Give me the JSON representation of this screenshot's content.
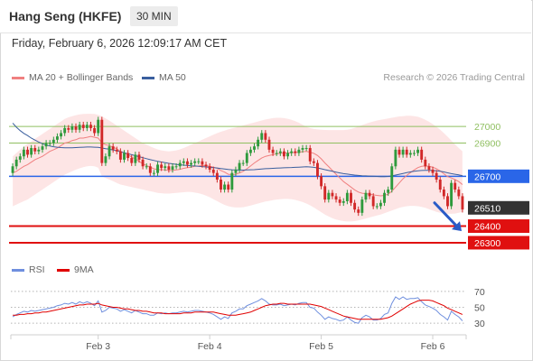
{
  "header": {
    "title": "Hang Seng (HKFE)",
    "timeframe": "30 MIN"
  },
  "timestamp": "Friday, February 6, 2026 12:09:17 AM CET",
  "legend": {
    "ma20": {
      "label": "MA 20 + Bollinger Bands",
      "color": "#f08080"
    },
    "ma50": {
      "label": "MA 50",
      "color": "#3a5f9e"
    },
    "rsi": {
      "label": "RSI",
      "color": "#6f8fde"
    },
    "ma9": {
      "label": "9MA",
      "color": "#e00000"
    }
  },
  "credit": "Research © 2026 Trading Central",
  "chart_data": [
    {
      "type": "candlestick",
      "title": "Hang Seng (HKFE)",
      "timeframe": "30 MIN",
      "x_ticks": [
        "Feb 3",
        "Feb 4",
        "Feb 5",
        "Feb 6"
      ],
      "ylim": [
        26240,
        27120
      ],
      "levels": [
        {
          "label": "27000",
          "value": 27000,
          "kind": "resistance",
          "color": "#8fbf60",
          "text_color": "#8fbf60"
        },
        {
          "label": "26900",
          "value": 26900,
          "kind": "resistance",
          "color": "#8fbf60",
          "text_color": "#8fbf60"
        },
        {
          "label": "26700",
          "value": 26700,
          "kind": "pivot",
          "color": "#2a66e8",
          "text_color": "#ffffff",
          "box": true
        },
        {
          "label": "26510",
          "value": 26510,
          "kind": "last",
          "color": "#333333",
          "text_color": "#ffffff",
          "box": true,
          "no_line": true
        },
        {
          "label": "26400",
          "value": 26400,
          "kind": "support",
          "color": "#e01010",
          "text_color": "#ffffff",
          "box": true
        },
        {
          "label": "26300",
          "value": 26300,
          "kind": "support",
          "color": "#e01010",
          "text_color": "#ffffff",
          "box": true
        }
      ],
      "bias_arrow": {
        "from": 26540,
        "to": 26370,
        "color": "#2a5bc7"
      },
      "candle_colors": {
        "up": "#2e9a3c",
        "down": "#d12828"
      },
      "series": {
        "close": [
          26760,
          26800,
          26820,
          26860,
          26830,
          26870,
          26850,
          26860,
          26880,
          26900,
          26900,
          26920,
          26940,
          26960,
          26990,
          26980,
          27000,
          26980,
          27010,
          26990,
          27010,
          26990,
          26960,
          27040,
          26780,
          26820,
          26880,
          26860,
          26850,
          26800,
          26840,
          26810,
          26780,
          26830,
          26800,
          26760,
          26760,
          26720,
          26720,
          26770,
          26750,
          26760,
          26740,
          26760,
          26760,
          26780,
          26790,
          26770,
          26780,
          26790,
          26790,
          26770,
          26760,
          26740,
          26720,
          26680,
          26620,
          26650,
          26620,
          26720,
          26740,
          26780,
          26780,
          26840,
          26860,
          26880,
          26920,
          26960,
          26920,
          26860,
          26840,
          26840,
          26850,
          26820,
          26840,
          26850,
          26840,
          26860,
          26870,
          26870,
          26790,
          26780,
          26700,
          26640,
          26560,
          26600,
          26580,
          26560,
          26540,
          26550,
          26600,
          26540,
          26500,
          26480,
          26560,
          26600,
          26580,
          26520,
          26520,
          26540,
          26600,
          26620,
          26760,
          26860,
          26830,
          26860,
          26830,
          26840,
          26840,
          26860,
          26800,
          26760,
          26740,
          26720,
          26680,
          26620,
          26580,
          26520,
          26660,
          26620,
          26580,
          26500
        ],
        "open": [
          26720,
          26760,
          26800,
          26820,
          26860,
          26830,
          26870,
          26850,
          26860,
          26880,
          26900,
          26900,
          26920,
          26940,
          26960,
          26990,
          26980,
          27000,
          26980,
          27010,
          26990,
          27010,
          26990,
          26960,
          27040,
          26780,
          26820,
          26880,
          26860,
          26850,
          26800,
          26840,
          26810,
          26780,
          26830,
          26800,
          26760,
          26760,
          26720,
          26720,
          26770,
          26750,
          26760,
          26740,
          26760,
          26760,
          26780,
          26790,
          26770,
          26780,
          26790,
          26790,
          26770,
          26760,
          26740,
          26720,
          26680,
          26620,
          26650,
          26620,
          26720,
          26740,
          26780,
          26780,
          26840,
          26860,
          26880,
          26920,
          26960,
          26920,
          26860,
          26840,
          26840,
          26850,
          26820,
          26840,
          26850,
          26840,
          26860,
          26870,
          26870,
          26790,
          26780,
          26700,
          26640,
          26560,
          26600,
          26580,
          26560,
          26540,
          26550,
          26600,
          26540,
          26500,
          26480,
          26560,
          26600,
          26580,
          26520,
          26520,
          26540,
          26600,
          26620,
          26760,
          26860,
          26830,
          26860,
          26830,
          26840,
          26840,
          26860,
          26800,
          26760,
          26740,
          26720,
          26680,
          26620,
          26580,
          26520,
          26660,
          26620,
          26580
        ]
      },
      "ma20": [
        26720,
        26730,
        26745,
        26760,
        26770,
        26785,
        26800,
        26810,
        26820,
        26835,
        26850,
        26860,
        26870,
        26885,
        26900,
        26905,
        26915,
        26920,
        26930,
        26930,
        26935,
        26940,
        26935,
        26930,
        26900,
        26890,
        26885,
        26875,
        26865,
        26850,
        26840,
        26830,
        26815,
        26805,
        26790,
        26775,
        26765,
        26755,
        26745,
        26740,
        26740,
        26738,
        26735,
        26735,
        26738,
        26742,
        26748,
        26752,
        26755,
        26760,
        26762,
        26765,
        26763,
        26760,
        26755,
        26748,
        26735,
        26725,
        26712,
        26710,
        26712,
        26720,
        26730,
        26745,
        26762,
        26780,
        26795,
        26810,
        26820,
        26825,
        26830,
        26835,
        26838,
        26840,
        26840,
        26842,
        26843,
        26845,
        26848,
        26850,
        26845,
        26838,
        26825,
        26805,
        26780,
        26758,
        26735,
        26712,
        26690,
        26668,
        26652,
        26635,
        26618,
        26605,
        26598,
        26595,
        26592,
        26588,
        26585,
        26582,
        26585,
        26592,
        26610,
        26635,
        26660,
        26685,
        26705,
        26722,
        26738,
        26752,
        26760,
        26762,
        26760,
        26755,
        26745,
        26732,
        26715,
        26698,
        26690,
        26680,
        26668,
        26650
      ],
      "ma50": [
        27020,
        26995,
        26975,
        26958,
        26945,
        26930,
        26918,
        26906,
        26896,
        26888,
        26882,
        26878,
        26875,
        26873,
        26872,
        26872,
        26872,
        26873,
        26874,
        26875,
        26876,
        26876,
        26875,
        26874,
        26870,
        26866,
        26863,
        26858,
        26853,
        26848,
        26842,
        26836,
        26830,
        26824,
        26818,
        26812,
        26806,
        26800,
        26795,
        26790,
        26786,
        26782,
        26778,
        26775,
        26772,
        26769,
        26767,
        26765,
        26763,
        26762,
        26760,
        26758,
        26756,
        26754,
        26752,
        26750,
        26747,
        26744,
        26741,
        26739,
        26738,
        26737,
        26737,
        26738,
        26739,
        26740,
        26742,
        26744,
        26746,
        26747,
        26748,
        26749,
        26750,
        26751,
        26752,
        26753,
        26754,
        26755,
        26756,
        26757,
        26756,
        26754,
        26750,
        26745,
        26740,
        26735,
        26730,
        26725,
        26720,
        26716,
        26713,
        26710,
        26707,
        26705,
        26703,
        26702,
        26701,
        26700,
        26699,
        26698,
        26698,
        26699,
        26702,
        26707,
        26712,
        26717,
        26722,
        26726,
        26730,
        26733,
        26735,
        26736,
        26736,
        26735,
        26733,
        26730,
        26726,
        26721,
        26716,
        26712,
        26708,
        26704
      ],
      "bb_upper": [
        26820,
        26840,
        26860,
        26880,
        26895,
        26910,
        26925,
        26940,
        26955,
        26970,
        26985,
        27000,
        27015,
        27030,
        27045,
        27055,
        27062,
        27068,
        27072,
        27075,
        27076,
        27076,
        27075,
        27070,
        27060,
        27048,
        27035,
        27020,
        27005,
        26990,
        26975,
        26960,
        26945,
        26930,
        26915,
        26900,
        26890,
        26880,
        26870,
        26862,
        26856,
        26852,
        26850,
        26852,
        26856,
        26862,
        26870,
        26880,
        26890,
        26900,
        26910,
        26920,
        26930,
        26940,
        26950,
        26960,
        26968,
        26975,
        26982,
        26988,
        26994,
        27000,
        27006,
        27012,
        27018,
        27024,
        27030,
        27036,
        27042,
        27046,
        27050,
        27052,
        27052,
        27050,
        27046,
        27040,
        27032,
        27022,
        27010,
        26998,
        26990,
        26985,
        26982,
        26980,
        26979,
        26978,
        26978,
        26978,
        26978,
        26978,
        26980,
        26985,
        26992,
        27000,
        27008,
        27016,
        27024,
        27030,
        27036,
        27040,
        27044,
        27048,
        27052,
        27056,
        27060,
        27062,
        27064,
        27064,
        27062,
        27058,
        27050,
        27040,
        27028,
        27014,
        26998,
        26980,
        26960,
        26938,
        26915,
        26892,
        26870,
        26850
      ],
      "bb_lower": [
        26520,
        26530,
        26540,
        26550,
        26560,
        26575,
        26590,
        26605,
        26620,
        26635,
        26650,
        26665,
        26680,
        26695,
        26710,
        26720,
        26730,
        26740,
        26748,
        26755,
        26760,
        26762,
        26760,
        26752,
        26700,
        26690,
        26680,
        26670,
        26660,
        26650,
        26645,
        26640,
        26635,
        26630,
        26625,
        26620,
        26615,
        26610,
        26605,
        26600,
        26598,
        26596,
        26596,
        26598,
        26600,
        26602,
        26604,
        26606,
        26605,
        26602,
        26598,
        26592,
        26584,
        26574,
        26562,
        26550,
        26538,
        26528,
        26520,
        26515,
        26512,
        26512,
        26514,
        26518,
        26524,
        26530,
        26536,
        26542,
        26548,
        26552,
        26556,
        26560,
        26562,
        26564,
        26564,
        26562,
        26558,
        26552,
        26545,
        26536,
        26525,
        26512,
        26498,
        26484,
        26470,
        26458,
        26448,
        26440,
        26434,
        26430,
        26428,
        26428,
        26430,
        26434,
        26440,
        26446,
        26452,
        26458,
        26464,
        26470,
        26478,
        26486,
        26494,
        26502,
        26510,
        26516,
        26520,
        26522,
        26522,
        26520,
        26516,
        26510,
        26502,
        26494,
        26486,
        26480,
        26476,
        26474,
        26474,
        26476,
        26480,
        26486
      ]
    },
    {
      "type": "line",
      "title": "RSI",
      "ylim": [
        20,
        80
      ],
      "y_ticks": [
        "70",
        "50",
        "30"
      ],
      "series": [
        {
          "name": "RSI",
          "color": "#6f8fde",
          "values": [
            38,
            41,
            43,
            45,
            44,
            46,
            45,
            46,
            47,
            48,
            49,
            50,
            52,
            53,
            55,
            54,
            56,
            54,
            57,
            55,
            57,
            55,
            52,
            58,
            44,
            46,
            50,
            49,
            48,
            45,
            47,
            45,
            43,
            46,
            44,
            42,
            42,
            40,
            40,
            43,
            42,
            43,
            42,
            43,
            43,
            44,
            45,
            44,
            45,
            46,
            46,
            45,
            44,
            43,
            41,
            38,
            35,
            38,
            36,
            43,
            45,
            48,
            48,
            52,
            54,
            56,
            58,
            61,
            58,
            54,
            53,
            53,
            54,
            52,
            53,
            54,
            53,
            55,
            56,
            56,
            50,
            49,
            44,
            40,
            35,
            38,
            36,
            35,
            33,
            34,
            38,
            34,
            31,
            30,
            37,
            40,
            38,
            34,
            34,
            36,
            41,
            43,
            55,
            63,
            60,
            63,
            60,
            61,
            61,
            62,
            57,
            53,
            51,
            49,
            46,
            41,
            38,
            34,
            45,
            41,
            38,
            33
          ]
        },
        {
          "name": "9MA",
          "color": "#e00000",
          "values": [
            40,
            40,
            41,
            41,
            42,
            42,
            43,
            43,
            44,
            44,
            45,
            46,
            47,
            48,
            49,
            50,
            51,
            52,
            53,
            53,
            54,
            54,
            54,
            55,
            53,
            52,
            51,
            50,
            50,
            49,
            48,
            48,
            47,
            46,
            46,
            45,
            45,
            44,
            43,
            43,
            43,
            42,
            42,
            42,
            42,
            42,
            43,
            43,
            43,
            44,
            44,
            44,
            44,
            44,
            44,
            43,
            42,
            41,
            40,
            40,
            40,
            41,
            42,
            43,
            44,
            46,
            48,
            50,
            52,
            53,
            54,
            54,
            55,
            55,
            54,
            54,
            54,
            54,
            54,
            54,
            54,
            53,
            52,
            51,
            49,
            47,
            45,
            43,
            41,
            39,
            38,
            37,
            36,
            35,
            35,
            35,
            35,
            35,
            35,
            35,
            36,
            37,
            39,
            42,
            45,
            48,
            51,
            54,
            56,
            58,
            59,
            59,
            59,
            58,
            56,
            54,
            52,
            49,
            47,
            45,
            43,
            41
          ]
        }
      ],
      "thresholds": [
        70,
        50,
        30
      ]
    }
  ]
}
